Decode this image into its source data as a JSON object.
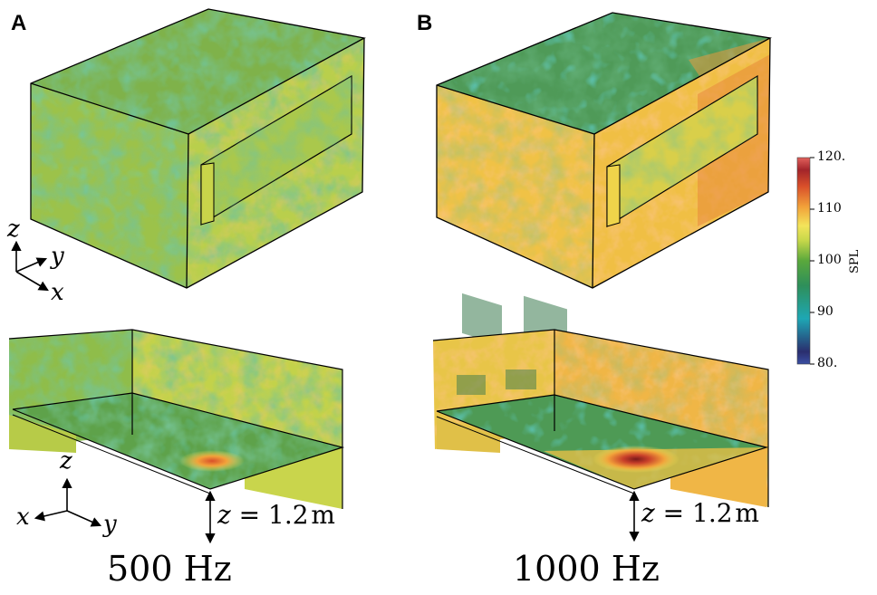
{
  "panels": {
    "a": {
      "label": "A",
      "frequency": "500 Hz",
      "z_height": "1.2",
      "z_unit": "m"
    },
    "b": {
      "label": "B",
      "frequency": "1000 Hz",
      "z_height": "1.2",
      "z_unit": "m"
    }
  },
  "axes": {
    "x": "x",
    "y": "y",
    "z": "z"
  },
  "z_equals": "z = ",
  "colorbar": {
    "title": "SPL",
    "ticks": [
      "120.",
      "110",
      "100",
      "90",
      "80."
    ],
    "min": 80,
    "max": 120,
    "colors": [
      "#3a4fa3",
      "#2a2e6e",
      "#1ea7b4",
      "#2e8f5a",
      "#5aa83c",
      "#c8d84a",
      "#f3e45a",
      "#f2a23a",
      "#d9502a",
      "#a3242a",
      "#e2615c"
    ]
  }
}
